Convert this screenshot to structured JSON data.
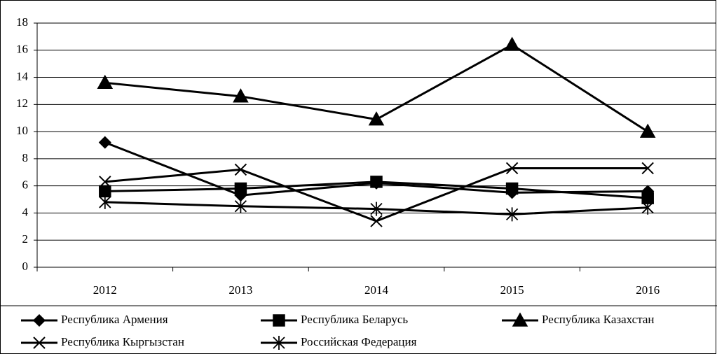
{
  "chart_data": {
    "type": "line",
    "categories": [
      "2012",
      "2013",
      "2014",
      "2015",
      "2016"
    ],
    "series": [
      {
        "name": "Республика Армения",
        "color": "#000000",
        "marker": "diamond",
        "values": [
          9.2,
          5.3,
          6.2,
          5.5,
          5.6
        ]
      },
      {
        "name": "Республика Беларусь",
        "color": "#000000",
        "marker": "square",
        "values": [
          5.6,
          5.8,
          6.3,
          5.8,
          5.1
        ]
      },
      {
        "name": "Республика Казахстан",
        "color": "#000000",
        "marker": "triangle",
        "values": [
          13.6,
          12.6,
          10.9,
          16.4,
          10.0
        ]
      },
      {
        "name": "Республика Кыргызстан",
        "color": "#000000",
        "marker": "x",
        "values": [
          6.3,
          7.2,
          3.4,
          7.3,
          7.3
        ]
      },
      {
        "name": "Российская Федерация",
        "color": "#000000",
        "marker": "asterisk",
        "values": [
          4.8,
          4.5,
          4.3,
          3.9,
          4.4
        ]
      }
    ],
    "ylim": [
      0,
      18
    ],
    "yticks": [
      0,
      2,
      4,
      6,
      8,
      10,
      12,
      14,
      16,
      18
    ],
    "grid": true,
    "legend": "bottom"
  }
}
